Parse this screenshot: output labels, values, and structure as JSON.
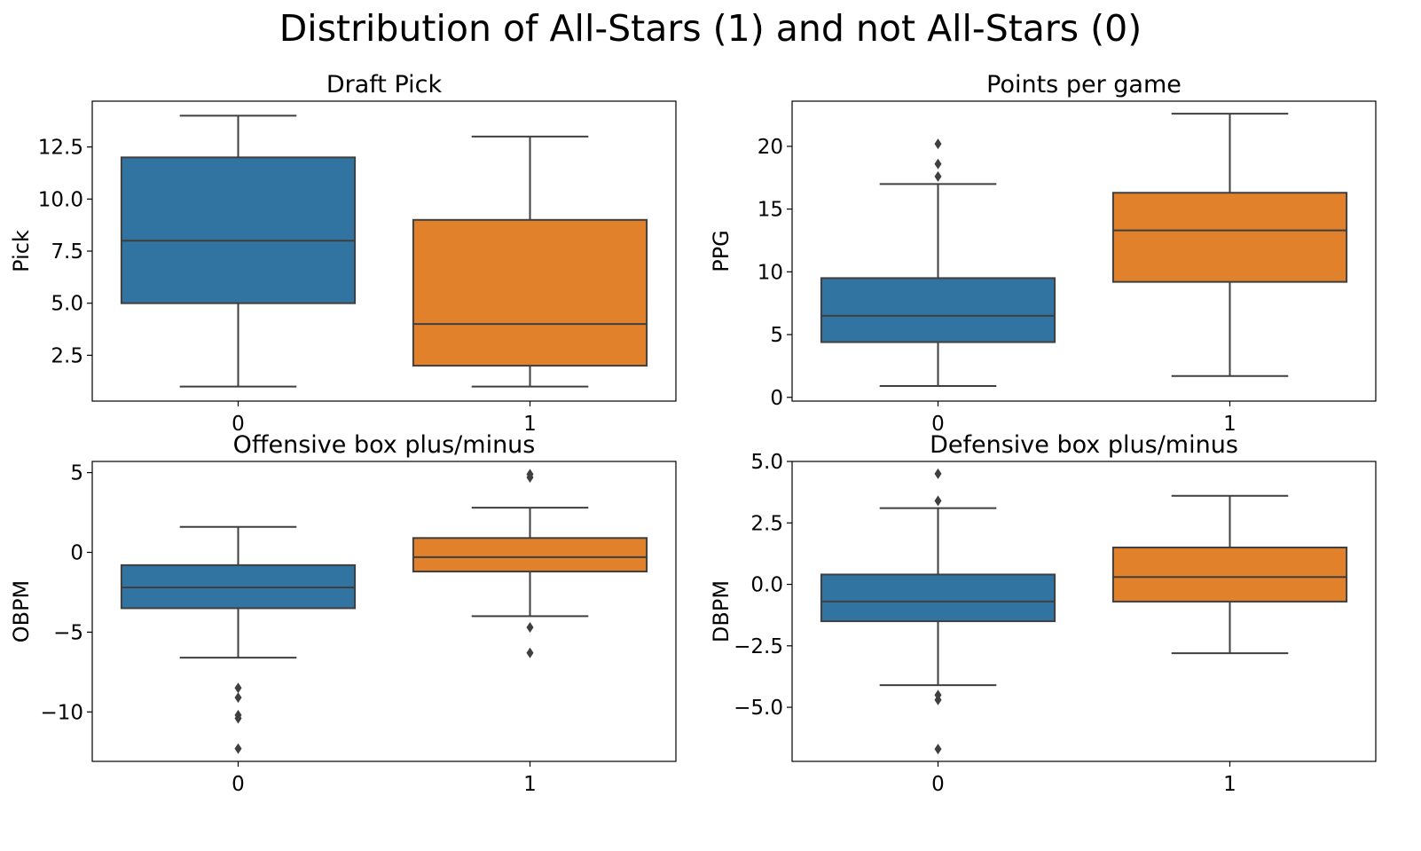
{
  "figure": {
    "title": "Distribution of All-Stars (1) and not All-Stars (0)"
  },
  "colors": {
    "group0": "#3274a1",
    "group1": "#e1812c",
    "edge": "#3f3f3f",
    "frame": "#000000"
  },
  "chart_data": [
    {
      "type": "box",
      "title": "Draft Pick",
      "ylabel": "Pick",
      "xlabel": "",
      "categories": [
        "0",
        "1"
      ],
      "ylim": [
        0.3,
        14.7
      ],
      "yticks": [
        2.5,
        5.0,
        7.5,
        10.0,
        12.5
      ],
      "ytick_labels": [
        "2.5",
        "5.0",
        "7.5",
        "10.0",
        "12.5"
      ],
      "boxes": [
        {
          "category": "0",
          "whisker_low": 1,
          "q1": 5,
          "median": 8,
          "q3": 12,
          "whisker_high": 14,
          "outliers": []
        },
        {
          "category": "1",
          "whisker_low": 1,
          "q1": 2,
          "median": 4,
          "q3": 9,
          "whisker_high": 13,
          "outliers": []
        }
      ]
    },
    {
      "type": "box",
      "title": "Points per game",
      "ylabel": "PPG",
      "xlabel": "",
      "categories": [
        "0",
        "1"
      ],
      "ylim": [
        -0.3,
        23.6
      ],
      "yticks": [
        0,
        5,
        10,
        15,
        20
      ],
      "ytick_labels": [
        "0",
        "5",
        "10",
        "15",
        "20"
      ],
      "boxes": [
        {
          "category": "0",
          "whisker_low": 0.9,
          "q1": 4.4,
          "median": 6.5,
          "q3": 9.5,
          "whisker_high": 17.0,
          "outliers": [
            17.6,
            18.6,
            20.2
          ]
        },
        {
          "category": "1",
          "whisker_low": 1.7,
          "q1": 9.2,
          "median": 13.3,
          "q3": 16.3,
          "whisker_high": 22.6,
          "outliers": []
        }
      ]
    },
    {
      "type": "box",
      "title": "Offensive box plus/minus",
      "ylabel": "OBPM",
      "xlabel": "",
      "categories": [
        "0",
        "1"
      ],
      "ylim": [
        -13.1,
        5.7
      ],
      "yticks": [
        -10,
        -5,
        0,
        5
      ],
      "ytick_labels": [
        "−10",
        "−5",
        "0",
        "5"
      ],
      "boxes": [
        {
          "category": "0",
          "whisker_low": -6.6,
          "q1": -3.5,
          "median": -2.2,
          "q3": -0.8,
          "whisker_high": 1.6,
          "outliers": [
            -8.5,
            -9.1,
            -10.2,
            -10.4,
            -12.3
          ]
        },
        {
          "category": "1",
          "whisker_low": -4.0,
          "q1": -1.2,
          "median": -0.3,
          "q3": 0.9,
          "whisker_high": 2.8,
          "outliers": [
            4.7,
            4.9,
            -4.7,
            -6.3
          ]
        }
      ]
    },
    {
      "type": "box",
      "title": "Defensive box plus/minus",
      "ylabel": "DBPM",
      "xlabel": "",
      "categories": [
        "0",
        "1"
      ],
      "ylim": [
        -7.2,
        5.0
      ],
      "yticks": [
        -5.0,
        -2.5,
        0.0,
        2.5,
        5.0
      ],
      "ytick_labels": [
        "−5.0",
        "−2.5",
        "0.0",
        "2.5",
        "5.0"
      ],
      "boxes": [
        {
          "category": "0",
          "whisker_low": -4.1,
          "q1": -1.5,
          "median": -0.7,
          "q3": 0.4,
          "whisker_high": 3.1,
          "outliers": [
            3.4,
            4.5,
            -4.5,
            -4.7,
            -6.7
          ]
        },
        {
          "category": "1",
          "whisker_low": -2.8,
          "q1": -0.7,
          "median": 0.3,
          "q3": 1.5,
          "whisker_high": 3.6,
          "outliers": []
        }
      ]
    }
  ]
}
